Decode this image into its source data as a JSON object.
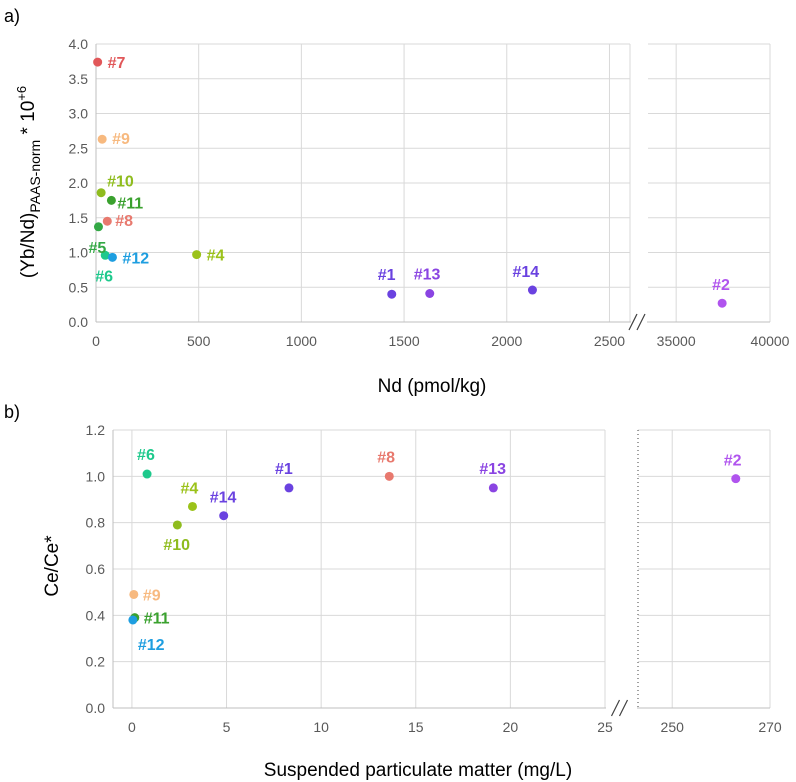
{
  "chart_data": [
    {
      "type": "scatter",
      "panel_label": "a)",
      "xlabel": "Nd (pmol/kg)",
      "ylabel_main": "(Yb/Nd)",
      "ylabel_sub": "PAAS-norm",
      "ylabel_tail": " * 10",
      "ylabel_sup": "+6",
      "ylim": [
        0,
        4.0
      ],
      "ytick_labels": [
        "0.0",
        "0.5",
        "1.0",
        "1.5",
        "2.0",
        "2.5",
        "3.0",
        "3.5",
        "4.0"
      ],
      "x_broken": true,
      "x_segments": [
        {
          "range": [
            0,
            2600
          ],
          "ticks": [
            0,
            500,
            1000,
            1500,
            2000,
            2500
          ],
          "tick_labels": [
            "0",
            "500",
            "1000",
            "1500",
            "2000",
            "2500"
          ]
        },
        {
          "range": [
            33500,
            40000
          ],
          "ticks": [
            35000,
            40000
          ],
          "tick_labels": [
            "35000",
            "40000"
          ]
        }
      ],
      "grid": true,
      "points": [
        {
          "label": "#7",
          "x": 8,
          "y": 3.74,
          "color": "#e15759"
        },
        {
          "label": "#9",
          "x": 30,
          "y": 2.63,
          "color": "#f7b97f"
        },
        {
          "label": "#10",
          "x": 25,
          "y": 1.86,
          "color": "#8fbc1e"
        },
        {
          "label": "#11",
          "x": 75,
          "y": 1.75,
          "color": "#3aa12e"
        },
        {
          "label": "#8",
          "x": 55,
          "y": 1.45,
          "color": "#e8796e"
        },
        {
          "label": "#5",
          "x": 12,
          "y": 1.37,
          "color": "#33a845"
        },
        {
          "label": "#6",
          "x": 45,
          "y": 0.96,
          "color": "#1ec98c"
        },
        {
          "label": "#12",
          "x": 80,
          "y": 0.93,
          "color": "#1e9ee0"
        },
        {
          "label": "#4",
          "x": 490,
          "y": 0.97,
          "color": "#9bc21a"
        },
        {
          "label": "#1",
          "x": 1440,
          "y": 0.4,
          "color": "#6a42e0"
        },
        {
          "label": "#13",
          "x": 1625,
          "y": 0.41,
          "color": "#8a44e2"
        },
        {
          "label": "#14",
          "x": 2125,
          "y": 0.46,
          "color": "#6a42e0"
        },
        {
          "label": "#2",
          "x": 37450,
          "y": 0.27,
          "color": "#b054ee"
        }
      ]
    },
    {
      "type": "scatter",
      "panel_label": "b)",
      "xlabel": "Suspended particulate matter (mg/L)",
      "ylabel": "Ce/Ce*",
      "ylim": [
        0,
        1.2
      ],
      "ytick_labels": [
        "0.0",
        "0.2",
        "0.4",
        "0.6",
        "0.8",
        "1.0",
        "1.2"
      ],
      "x_broken": true,
      "x_segments": [
        {
          "range": [
            -1,
            25
          ],
          "ticks": [
            0,
            5,
            10,
            15,
            20,
            25
          ],
          "tick_labels": [
            "0",
            "5",
            "10",
            "15",
            "20",
            "25"
          ]
        },
        {
          "range": [
            250,
            270
          ],
          "ticks": [
            250,
            270
          ],
          "tick_labels": [
            "250",
            "270"
          ]
        }
      ],
      "grid": true,
      "points": [
        {
          "label": "#6",
          "x": 0.8,
          "y": 1.01,
          "color": "#1ec98c"
        },
        {
          "label": "#4",
          "x": 3.2,
          "y": 0.87,
          "color": "#9bc21a"
        },
        {
          "label": "#10",
          "x": 2.4,
          "y": 0.79,
          "color": "#8fbc1e"
        },
        {
          "label": "#14",
          "x": 4.85,
          "y": 0.83,
          "color": "#6a42e0"
        },
        {
          "label": "#1",
          "x": 8.3,
          "y": 0.95,
          "color": "#6a42e0"
        },
        {
          "label": "#8",
          "x": 13.6,
          "y": 1.0,
          "color": "#e8796e"
        },
        {
          "label": "#13",
          "x": 19.1,
          "y": 0.95,
          "color": "#8a44e2"
        },
        {
          "label": "#9",
          "x": 0.1,
          "y": 0.49,
          "color": "#f7b97f"
        },
        {
          "label": "#11",
          "x": 0.15,
          "y": 0.39,
          "color": "#3aa12e"
        },
        {
          "label": "#12",
          "x": 0.05,
          "y": 0.38,
          "color": "#1e9ee0"
        },
        {
          "label": "#2",
          "x": 263,
          "y": 0.99,
          "color": "#b054ee"
        }
      ]
    }
  ]
}
